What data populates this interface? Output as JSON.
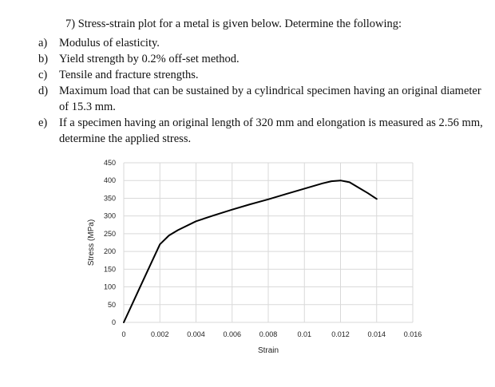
{
  "problem": {
    "title": "7) Stress-strain plot for a metal is given below. Determine the following:",
    "items": [
      {
        "marker": "a)",
        "text": "Modulus of elasticity."
      },
      {
        "marker": "b)",
        "text": "Yield strength by 0.2% off-set method."
      },
      {
        "marker": "c)",
        "text": "Tensile and fracture strengths."
      },
      {
        "marker": "d)",
        "text": "Maximum load that can be sustained by a cylindrical specimen having an original diameter of 15.3 mm."
      },
      {
        "marker": "e)",
        "text": "If a specimen having an original length of 320 mm and elongation is measured as 2.56 mm, determine the applied stress."
      }
    ]
  },
  "chart_data": {
    "type": "line",
    "title": "",
    "xlabel": "Strain",
    "ylabel": "Stress (MPa)",
    "xlim": [
      0,
      0.016
    ],
    "ylim": [
      0,
      450
    ],
    "xticks": [
      "0",
      "0.002",
      "0.004",
      "0.006",
      "0.008",
      "0.01",
      "0.012",
      "0.014",
      "0.016"
    ],
    "yticks": [
      "0",
      "50",
      "100",
      "150",
      "200",
      "250",
      "300",
      "350",
      "400",
      "450"
    ],
    "grid": true,
    "line_color": "#000000",
    "series": [
      {
        "x": [
          0,
          0.0005,
          0.001,
          0.0015,
          0.002,
          0.0025,
          0.003,
          0.004,
          0.005,
          0.006,
          0.007,
          0.008,
          0.009,
          0.01,
          0.011,
          0.0115,
          0.012,
          0.0125,
          0.013,
          0.0135,
          0.014
        ],
        "y": [
          0,
          55,
          110,
          165,
          220,
          245,
          260,
          285,
          302,
          318,
          333,
          347,
          362,
          377,
          392,
          398,
          400,
          395,
          380,
          365,
          348
        ]
      }
    ]
  }
}
